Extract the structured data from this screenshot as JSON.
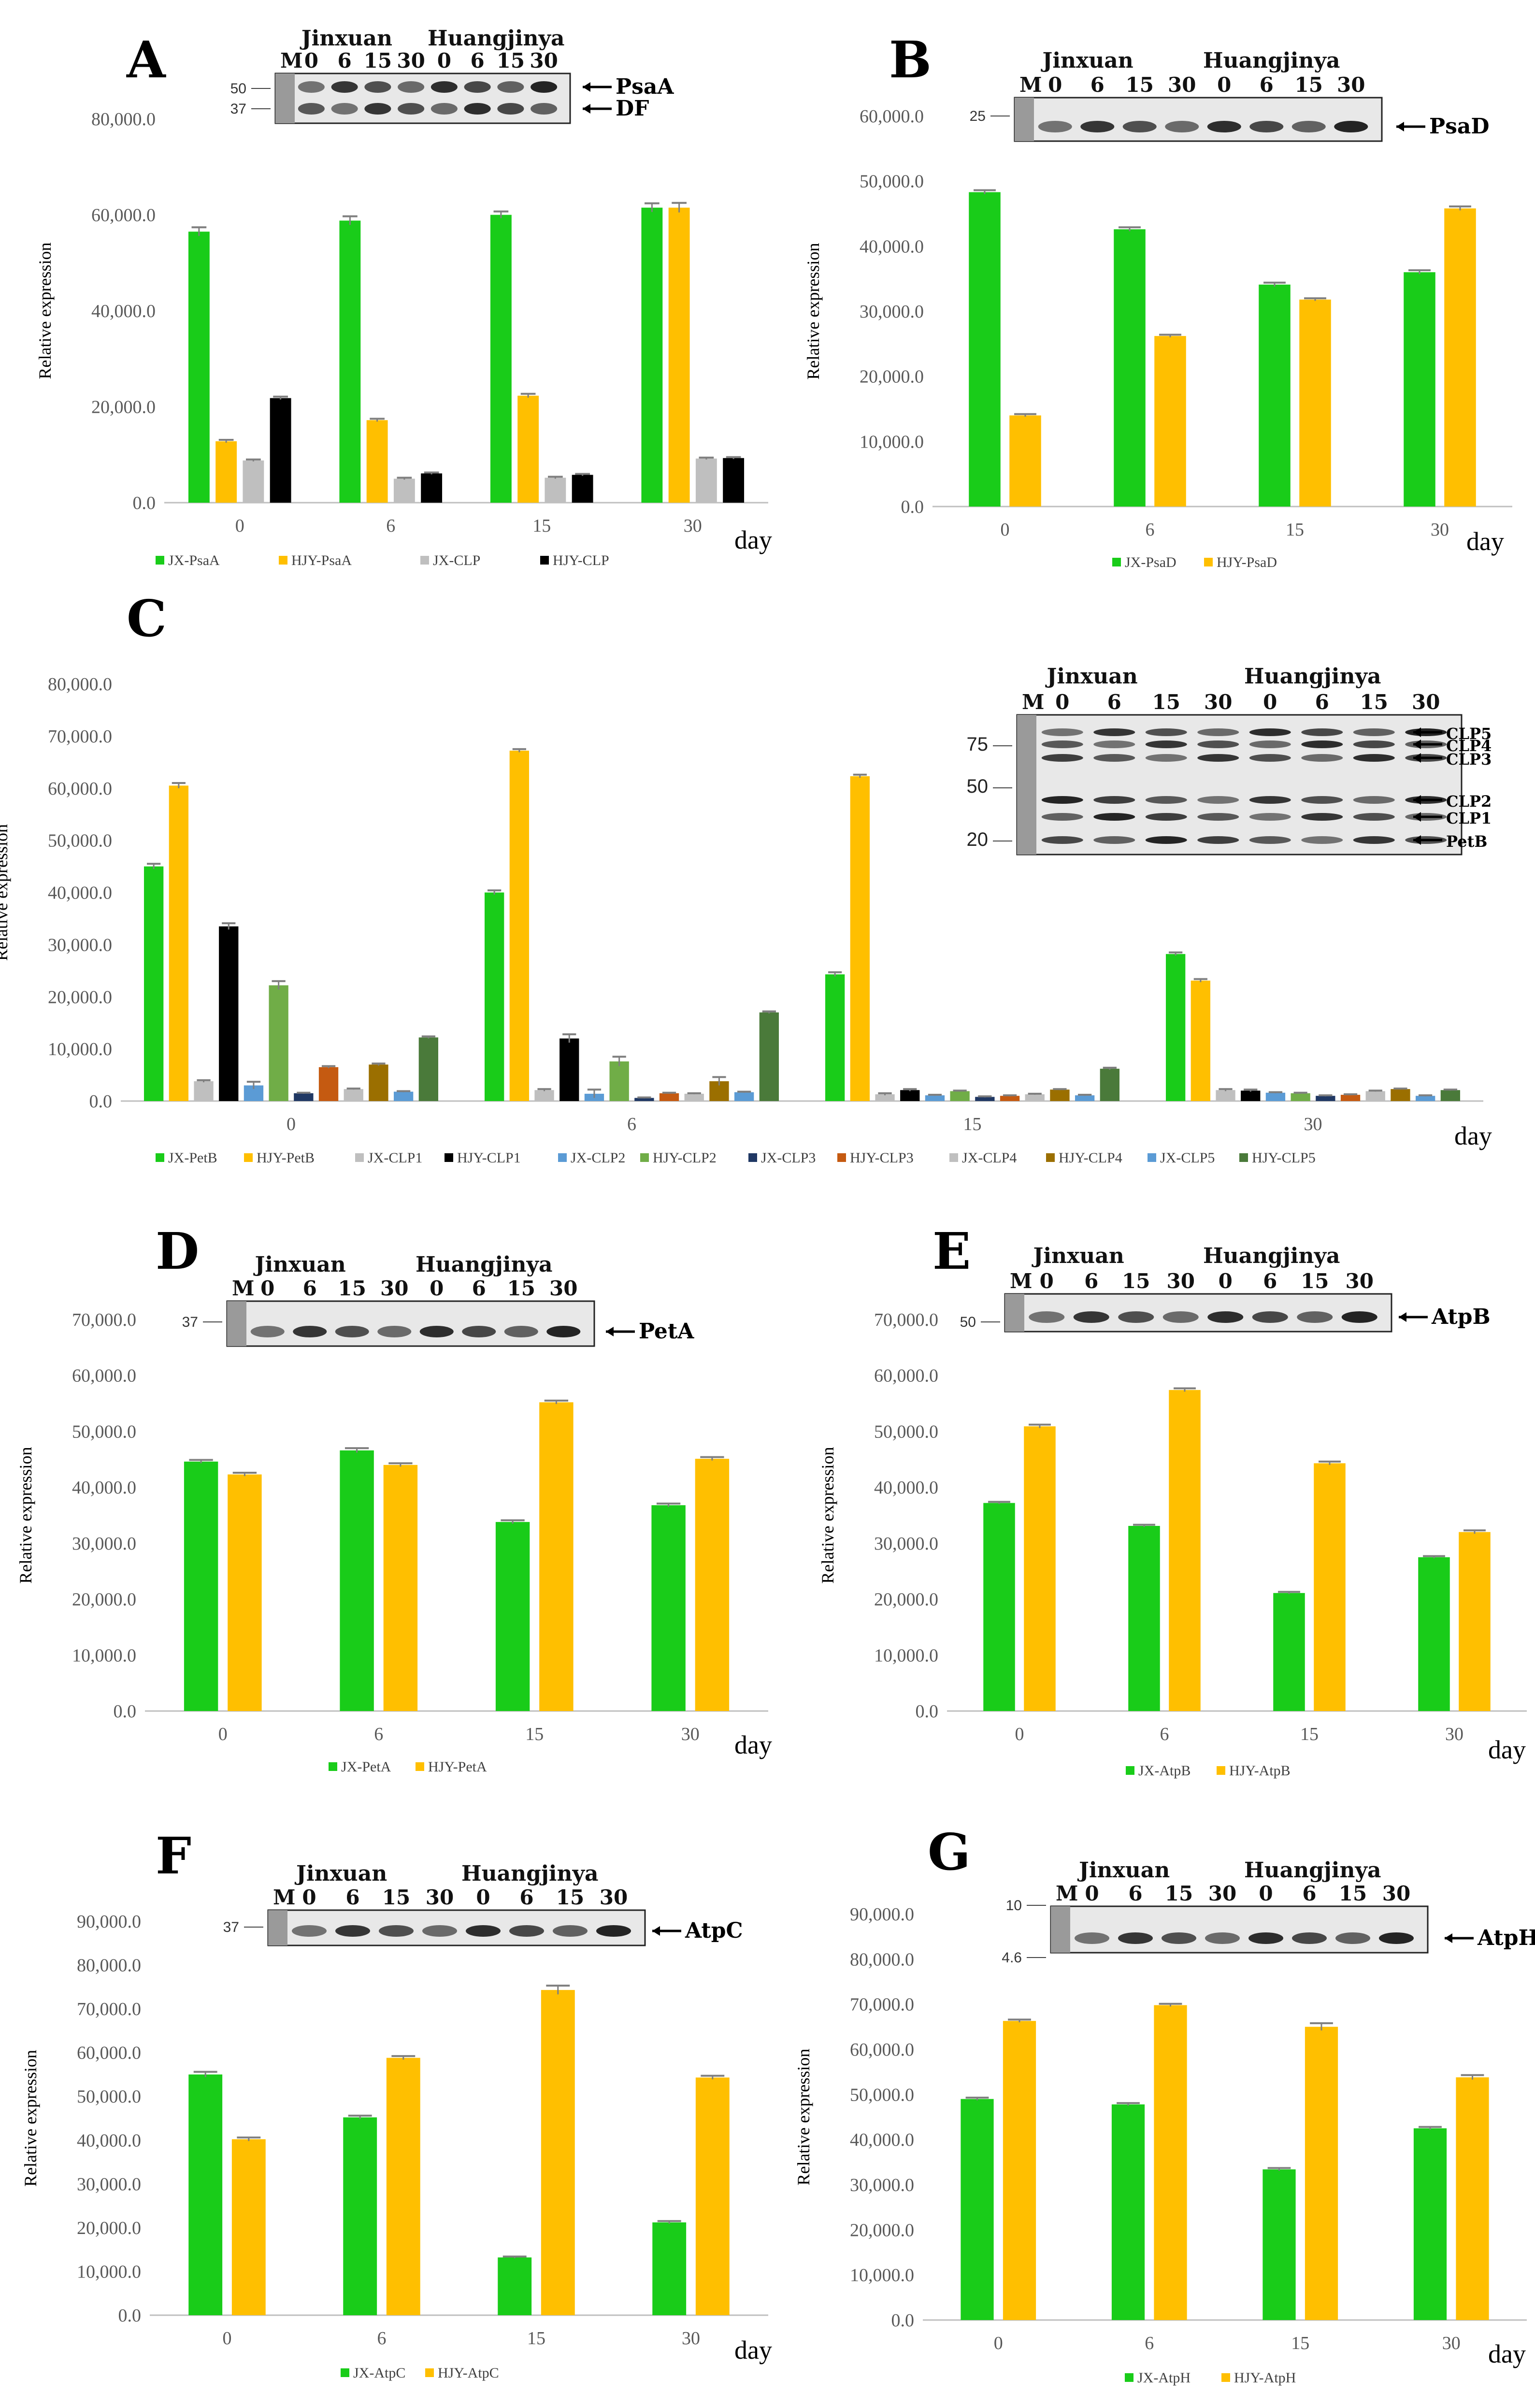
{
  "colors": {
    "JX": "#19cc19",
    "HJY": "#ffbf00",
    "gray": "#bfbfbf",
    "black": "#000000",
    "blue": "#5b9bd5",
    "lightgreen": "#70ad47",
    "navy": "#203864",
    "rust": "#c55a11",
    "olive": "#9b6f00",
    "darkgreen": "#4a7a3a"
  },
  "common": {
    "ylabel": "Relative expression",
    "xlabel": "day",
    "lane_marker": "M",
    "cultivar1": "Jinxuan",
    "cultivar2": "Huangjinya",
    "lanes": [
      "0",
      "6",
      "15",
      "30",
      "0",
      "6",
      "15",
      "30"
    ]
  },
  "chart_data": [
    {
      "id": "A",
      "type": "bar",
      "letter": "A",
      "categories": [
        "0",
        "6",
        "15",
        "30"
      ],
      "ylim": [
        0,
        80000
      ],
      "yticks": [
        "0.0",
        "20,000.0",
        "40,000.0",
        "60,000.0",
        "80,000.0"
      ],
      "series": [
        {
          "name": "JX-PsaA",
          "color": "JX",
          "values": [
            56500,
            58800,
            60000,
            61500
          ],
          "err": [
            900,
            900,
            700,
            900
          ]
        },
        {
          "name": "HJY-PsaA",
          "color": "HJY",
          "values": [
            12800,
            17200,
            22300,
            61500
          ],
          "err": [
            300,
            300,
            400,
            1000
          ]
        },
        {
          "name": "JX-CLP",
          "color": "gray",
          "values": [
            8800,
            5000,
            5200,
            9200
          ],
          "err": [
            200,
            200,
            200,
            200
          ]
        },
        {
          "name": "HJY-CLP",
          "color": "black",
          "values": [
            21800,
            6100,
            5800,
            9300
          ],
          "err": [
            300,
            200,
            200,
            200
          ]
        }
      ],
      "blot": {
        "mw": [
          "50",
          "37"
        ],
        "bands": [
          "PsaA",
          "DF"
        ]
      }
    },
    {
      "id": "B",
      "type": "bar",
      "letter": "B",
      "categories": [
        "0",
        "6",
        "15",
        "30"
      ],
      "ylim": [
        0,
        60000
      ],
      "yticks": [
        "0.0",
        "10,000.0",
        "20,000.0",
        "30,000.0",
        "40,000.0",
        "50,000.0",
        "60,000.0"
      ],
      "series": [
        {
          "name": "JX-PsaD",
          "color": "JX",
          "values": [
            48300,
            42600,
            34100,
            36000
          ],
          "err": [
            300,
            300,
            300,
            300
          ]
        },
        {
          "name": "HJY-PsaD",
          "color": "HJY",
          "values": [
            14000,
            26200,
            31800,
            45800
          ],
          "err": [
            200,
            200,
            200,
            300
          ]
        }
      ],
      "blot": {
        "mw": [
          "25"
        ],
        "bands": [
          "PsaD"
        ]
      }
    },
    {
      "id": "C",
      "type": "bar",
      "letter": "C",
      "categories": [
        "0",
        "6",
        "15",
        "30"
      ],
      "ylim": [
        0,
        80000
      ],
      "yticks": [
        "0.0",
        "10,000.0",
        "20,000.0",
        "30,000.0",
        "40,000.0",
        "50,000.0",
        "60,000.0",
        "70,000.0",
        "80,000.0"
      ],
      "series": [
        {
          "name": "JX-PetB",
          "color": "JX",
          "values": [
            45000,
            40000,
            24300,
            28200
          ],
          "err": [
            500,
            400,
            400,
            300
          ]
        },
        {
          "name": "HJY-PetB",
          "color": "HJY",
          "values": [
            60500,
            67200,
            62300,
            23100
          ],
          "err": [
            500,
            300,
            300,
            300
          ]
        },
        {
          "name": "JX-CLP1",
          "color": "gray",
          "values": [
            3800,
            2100,
            1300,
            2100
          ],
          "err": [
            200,
            200,
            200,
            200
          ]
        },
        {
          "name": "HJY-CLP1",
          "color": "black",
          "values": [
            33500,
            12000,
            2100,
            2000
          ],
          "err": [
            600,
            800,
            200,
            200
          ]
        },
        {
          "name": "JX-CLP2",
          "color": "blue",
          "values": [
            3000,
            1400,
            1100,
            1600
          ],
          "err": [
            700,
            800,
            100,
            100
          ]
        },
        {
          "name": "HJY-CLP2",
          "color": "lightgreen",
          "values": [
            22200,
            7600,
            1900,
            1500
          ],
          "err": [
            800,
            900,
            100,
            100
          ]
        },
        {
          "name": "JX-CLP3",
          "color": "navy",
          "values": [
            1500,
            600,
            800,
            1000
          ],
          "err": [
            100,
            100,
            100,
            100
          ]
        },
        {
          "name": "HJY-CLP3",
          "color": "rust",
          "values": [
            6500,
            1500,
            1000,
            1200
          ],
          "err": [
            200,
            100,
            100,
            100
          ]
        },
        {
          "name": "JX-CLP4",
          "color": "gray",
          "values": [
            2300,
            1400,
            1300,
            1900
          ],
          "err": [
            100,
            100,
            100,
            100
          ]
        },
        {
          "name": "HJY-CLP4",
          "color": "olive",
          "values": [
            7000,
            3800,
            2200,
            2300
          ],
          "err": [
            200,
            800,
            100,
            100
          ]
        },
        {
          "name": "JX-CLP5",
          "color": "blue",
          "values": [
            1800,
            1700,
            1100,
            1000
          ],
          "err": [
            100,
            100,
            100,
            100
          ]
        },
        {
          "name": "HJY-CLP5",
          "color": "darkgreen",
          "values": [
            12200,
            17000,
            6200,
            2100
          ],
          "err": [
            200,
            200,
            200,
            100
          ]
        }
      ],
      "blot": {
        "mw": [
          "75",
          "50",
          "20"
        ],
        "bands": [
          "CLP5",
          "CLP4",
          "CLP3",
          "CLP2",
          "CLP1",
          "PetB"
        ]
      }
    },
    {
      "id": "D",
      "type": "bar",
      "letter": "D",
      "categories": [
        "0",
        "6",
        "15",
        "30"
      ],
      "ylim": [
        0,
        70000
      ],
      "yticks": [
        "0.0",
        "10,000.0",
        "20,000.0",
        "30,000.0",
        "40,000.0",
        "50,000.0",
        "60,000.0",
        "70,000.0"
      ],
      "series": [
        {
          "name": "JX-PetA",
          "color": "JX",
          "values": [
            44600,
            46600,
            33800,
            36800
          ],
          "err": [
            300,
            400,
            300,
            300
          ]
        },
        {
          "name": "HJY-PetA",
          "color": "HJY",
          "values": [
            42300,
            44000,
            55200,
            45100
          ],
          "err": [
            300,
            300,
            300,
            300
          ]
        }
      ],
      "blot": {
        "mw": [
          "37"
        ],
        "bands": [
          "PetA"
        ]
      }
    },
    {
      "id": "E",
      "type": "bar",
      "letter": "E",
      "categories": [
        "0",
        "6",
        "15",
        "30"
      ],
      "ylim": [
        0,
        70000
      ],
      "yticks": [
        "0.0",
        "10,000.0",
        "20,000.0",
        "30,000.0",
        "40,000.0",
        "50,000.0",
        "60,000.0",
        "70,000.0"
      ],
      "series": [
        {
          "name": "JX-AtpB",
          "color": "JX",
          "values": [
            37200,
            33100,
            21100,
            27500
          ],
          "err": [
            200,
            200,
            200,
            200
          ]
        },
        {
          "name": "HJY-AtpB",
          "color": "HJY",
          "values": [
            50900,
            57400,
            44300,
            32000
          ],
          "err": [
            300,
            300,
            300,
            300
          ]
        }
      ],
      "blot": {
        "mw": [
          "50"
        ],
        "bands": [
          "AtpB"
        ]
      }
    },
    {
      "id": "F",
      "type": "bar",
      "letter": "F",
      "categories": [
        "0",
        "6",
        "15",
        "30"
      ],
      "ylim": [
        0,
        90000
      ],
      "yticks": [
        "0.0",
        "10,000.0",
        "20,000.0",
        "30,000.0",
        "40,000.0",
        "50,000.0",
        "60,000.0",
        "70,000.0",
        "80,000.0",
        "90,000.0"
      ],
      "series": [
        {
          "name": "JX-AtpC",
          "color": "JX",
          "values": [
            55000,
            45200,
            13200,
            21200
          ],
          "err": [
            600,
            400,
            200,
            300
          ]
        },
        {
          "name": "HJY-AtpC",
          "color": "HJY",
          "values": [
            40200,
            58800,
            74300,
            54300
          ],
          "err": [
            400,
            400,
            1000,
            400
          ]
        }
      ],
      "blot": {
        "mw": [
          "37"
        ],
        "bands": [
          "AtpC"
        ]
      }
    },
    {
      "id": "G",
      "type": "bar",
      "letter": "G",
      "categories": [
        "0",
        "6",
        "15",
        "30"
      ],
      "ylim": [
        0,
        90000
      ],
      "yticks": [
        "0.0",
        "10,000.0",
        "20,000.0",
        "30,000.0",
        "40,000.0",
        "50,000.0",
        "60,000.0",
        "70,000.0",
        "80,000.0",
        "90,000.0"
      ],
      "series": [
        {
          "name": "JX-AtpH",
          "color": "JX",
          "values": [
            49000,
            47800,
            33400,
            42500
          ],
          "err": [
            300,
            300,
            300,
            300
          ]
        },
        {
          "name": "HJY-AtpH",
          "color": "HJY",
          "values": [
            66300,
            69800,
            65000,
            53800
          ],
          "err": [
            300,
            300,
            800,
            500
          ]
        }
      ],
      "blot": {
        "mw": [
          "10",
          "4.6"
        ],
        "bands": [
          "AtpH"
        ]
      }
    }
  ]
}
